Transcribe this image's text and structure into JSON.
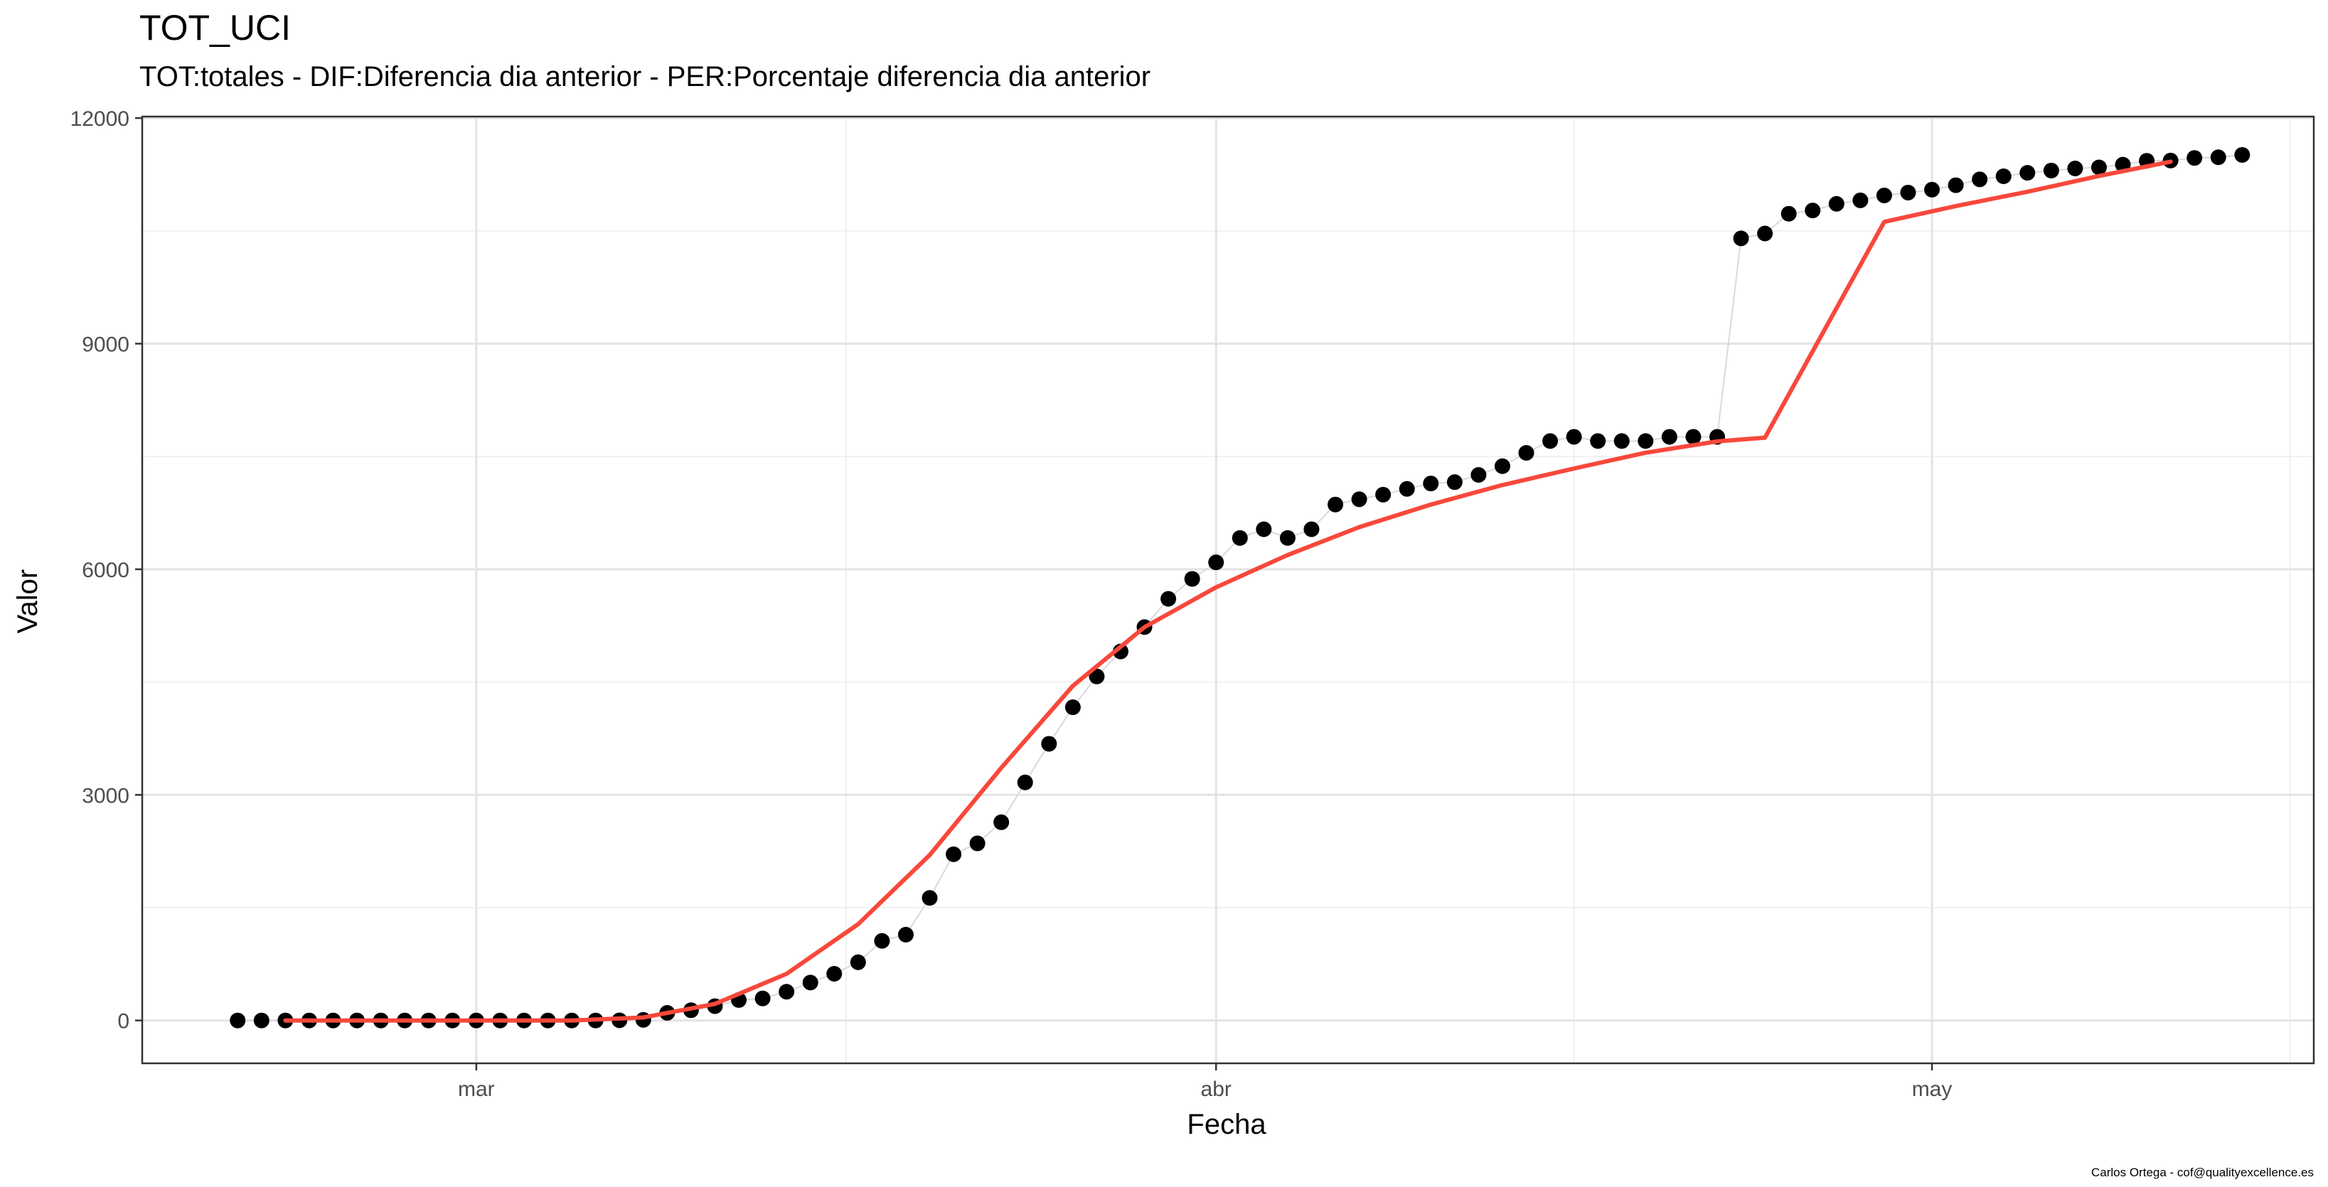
{
  "chart_data": {
    "type": "scatter",
    "title": "TOT_UCI",
    "subtitle": "TOT:totales - DIF:Diferencia dia anterior - PER:Porcentaje diferencia dia anterior",
    "xlabel": "Fecha",
    "ylabel": "Valor",
    "caption": "Carlos Ortega - cof@qualityexcellence.es",
    "x_ticks": [
      {
        "label": "mar",
        "date": "2020-03-01"
      },
      {
        "label": "abr",
        "date": "2020-04-01"
      },
      {
        "label": "may",
        "date": "2020-05-01"
      }
    ],
    "y_ticks": [
      0,
      3000,
      6000,
      9000,
      12000
    ],
    "xlim": [
      "2020-02-16",
      "2020-05-17"
    ],
    "ylim": [
      -570,
      12020
    ],
    "grid": true,
    "colors": {
      "points": "#000000",
      "trend": "#f8483b",
      "connector": "#d9d9d9",
      "grid_major": "#e3e3e3",
      "grid_minor": "#f0f0f0",
      "panel_border": "#333333"
    },
    "series": [
      {
        "kind": "points",
        "x": [
          "2020-02-20",
          "2020-02-21",
          "2020-02-22",
          "2020-02-23",
          "2020-02-24",
          "2020-02-25",
          "2020-02-26",
          "2020-02-27",
          "2020-02-28",
          "2020-02-29",
          "2020-03-01",
          "2020-03-02",
          "2020-03-03",
          "2020-03-04",
          "2020-03-05",
          "2020-03-06",
          "2020-03-07",
          "2020-03-08",
          "2020-03-09",
          "2020-03-10",
          "2020-03-11",
          "2020-03-12",
          "2020-03-13",
          "2020-03-14",
          "2020-03-15",
          "2020-03-16",
          "2020-03-17",
          "2020-03-18",
          "2020-03-19",
          "2020-03-20",
          "2020-03-21",
          "2020-03-22",
          "2020-03-23",
          "2020-03-24",
          "2020-03-25",
          "2020-03-26",
          "2020-03-27",
          "2020-03-28",
          "2020-03-29",
          "2020-03-30",
          "2020-03-31",
          "2020-04-01",
          "2020-04-02",
          "2020-04-03",
          "2020-04-04",
          "2020-04-05",
          "2020-04-06",
          "2020-04-07",
          "2020-04-08",
          "2020-04-09",
          "2020-04-10",
          "2020-04-11",
          "2020-04-12",
          "2020-04-13",
          "2020-04-14",
          "2020-04-15",
          "2020-04-16",
          "2020-04-17",
          "2020-04-18",
          "2020-04-19",
          "2020-04-20",
          "2020-04-21",
          "2020-04-22",
          "2020-04-23",
          "2020-04-24",
          "2020-04-25",
          "2020-04-26",
          "2020-04-27",
          "2020-04-28",
          "2020-04-29",
          "2020-04-30",
          "2020-05-01",
          "2020-05-02",
          "2020-05-03",
          "2020-05-04",
          "2020-05-05",
          "2020-05-06",
          "2020-05-07",
          "2020-05-08",
          "2020-05-09",
          "2020-05-10",
          "2020-05-11",
          "2020-05-12",
          "2020-05-13",
          "2020-05-14"
        ],
        "y": [
          0,
          0,
          0,
          0,
          0,
          0,
          0,
          0,
          0,
          0,
          0,
          0,
          0,
          0,
          0,
          0,
          2,
          8,
          101,
          136,
          190,
          272,
          293,
          382,
          504,
          621,
          774,
          1058,
          1141,
          1630,
          2210,
          2355,
          2636,
          3166,
          3679,
          4165,
          4575,
          4907,
          5231,
          5607,
          5872,
          6092,
          6416,
          6532,
          6416,
          6532,
          6861,
          6931,
          6992,
          7069,
          7141,
          7159,
          7255,
          7371,
          7548,
          7705,
          7761,
          7705,
          7705,
          7705,
          7761,
          7761,
          7761,
          10400,
          10465,
          10728,
          10771,
          10860,
          10906,
          10971,
          11009,
          11048,
          11107,
          11185,
          11226,
          11272,
          11302,
          11330,
          11344,
          11381,
          11432,
          11435,
          11470,
          11479,
          11510
        ]
      },
      {
        "kind": "trend",
        "x": [
          "2020-02-22",
          "2020-02-27",
          "2020-03-03",
          "2020-03-05",
          "2020-03-08",
          "2020-03-11",
          "2020-03-14",
          "2020-03-17",
          "2020-03-20",
          "2020-03-23",
          "2020-03-26",
          "2020-03-29",
          "2020-04-01",
          "2020-04-04",
          "2020-04-07",
          "2020-04-10",
          "2020-04-13",
          "2020-04-16",
          "2020-04-19",
          "2020-04-22",
          "2020-04-24",
          "2020-04-29",
          "2020-05-02",
          "2020-05-05",
          "2020-05-08",
          "2020-05-11"
        ],
        "y": [
          0,
          0,
          0,
          0,
          40,
          220,
          620,
          1280,
          2200,
          3360,
          4450,
          5230,
          5760,
          6190,
          6560,
          6860,
          7120,
          7340,
          7550,
          7700,
          7750,
          10620,
          10830,
          11020,
          11230,
          11420
        ]
      }
    ]
  }
}
